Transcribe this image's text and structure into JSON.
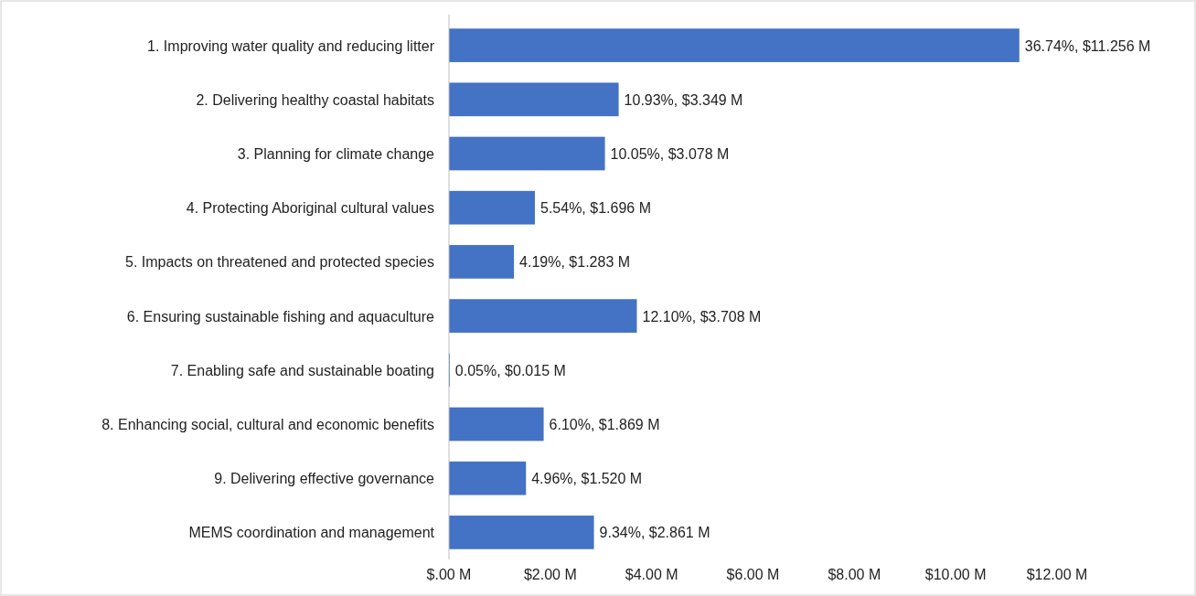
{
  "chart_data": {
    "type": "bar",
    "orientation": "horizontal",
    "categories": [
      "1. Improving water quality and reducing litter",
      "2. Delivering healthy coastal habitats",
      "3. Planning for climate change",
      "4. Protecting Aboriginal cultural values",
      "5. Impacts on threatened and protected species",
      "6. Ensuring sustainable fishing and aquaculture",
      "7. Enabling safe and sustainable boating",
      "8. Enhancing social, cultural and economic benefits",
      "9. Delivering effective governance",
      "MEMS coordination and management"
    ],
    "values": [
      11.256,
      3.349,
      3.078,
      1.696,
      1.283,
      3.708,
      0.015,
      1.869,
      1.52,
      2.861
    ],
    "value_labels": [
      "36.74%, $11.256 M",
      "10.93%, $3.349 M",
      "10.05%, $3.078 M",
      "5.54%, $1.696 M",
      "4.19%, $1.283 M",
      "12.10%, $3.708 M",
      "0.05%, $0.015 M",
      "6.10%, $1.869 M",
      "4.96%, $1.520 M",
      "9.34%, $2.861 M"
    ],
    "color": "#4472c4",
    "xlim": [
      0,
      12
    ],
    "xticks": [
      {
        "value": 0,
        "label": "$.00 M"
      },
      {
        "value": 2,
        "label": "$2.00 M"
      },
      {
        "value": 4,
        "label": "$4.00 M"
      },
      {
        "value": 6,
        "label": "$6.00 M"
      },
      {
        "value": 8,
        "label": "$8.00 M"
      },
      {
        "value": 10,
        "label": "$10.00 M"
      },
      {
        "value": 12,
        "label": "$12.00 M"
      }
    ],
    "grid": false
  }
}
